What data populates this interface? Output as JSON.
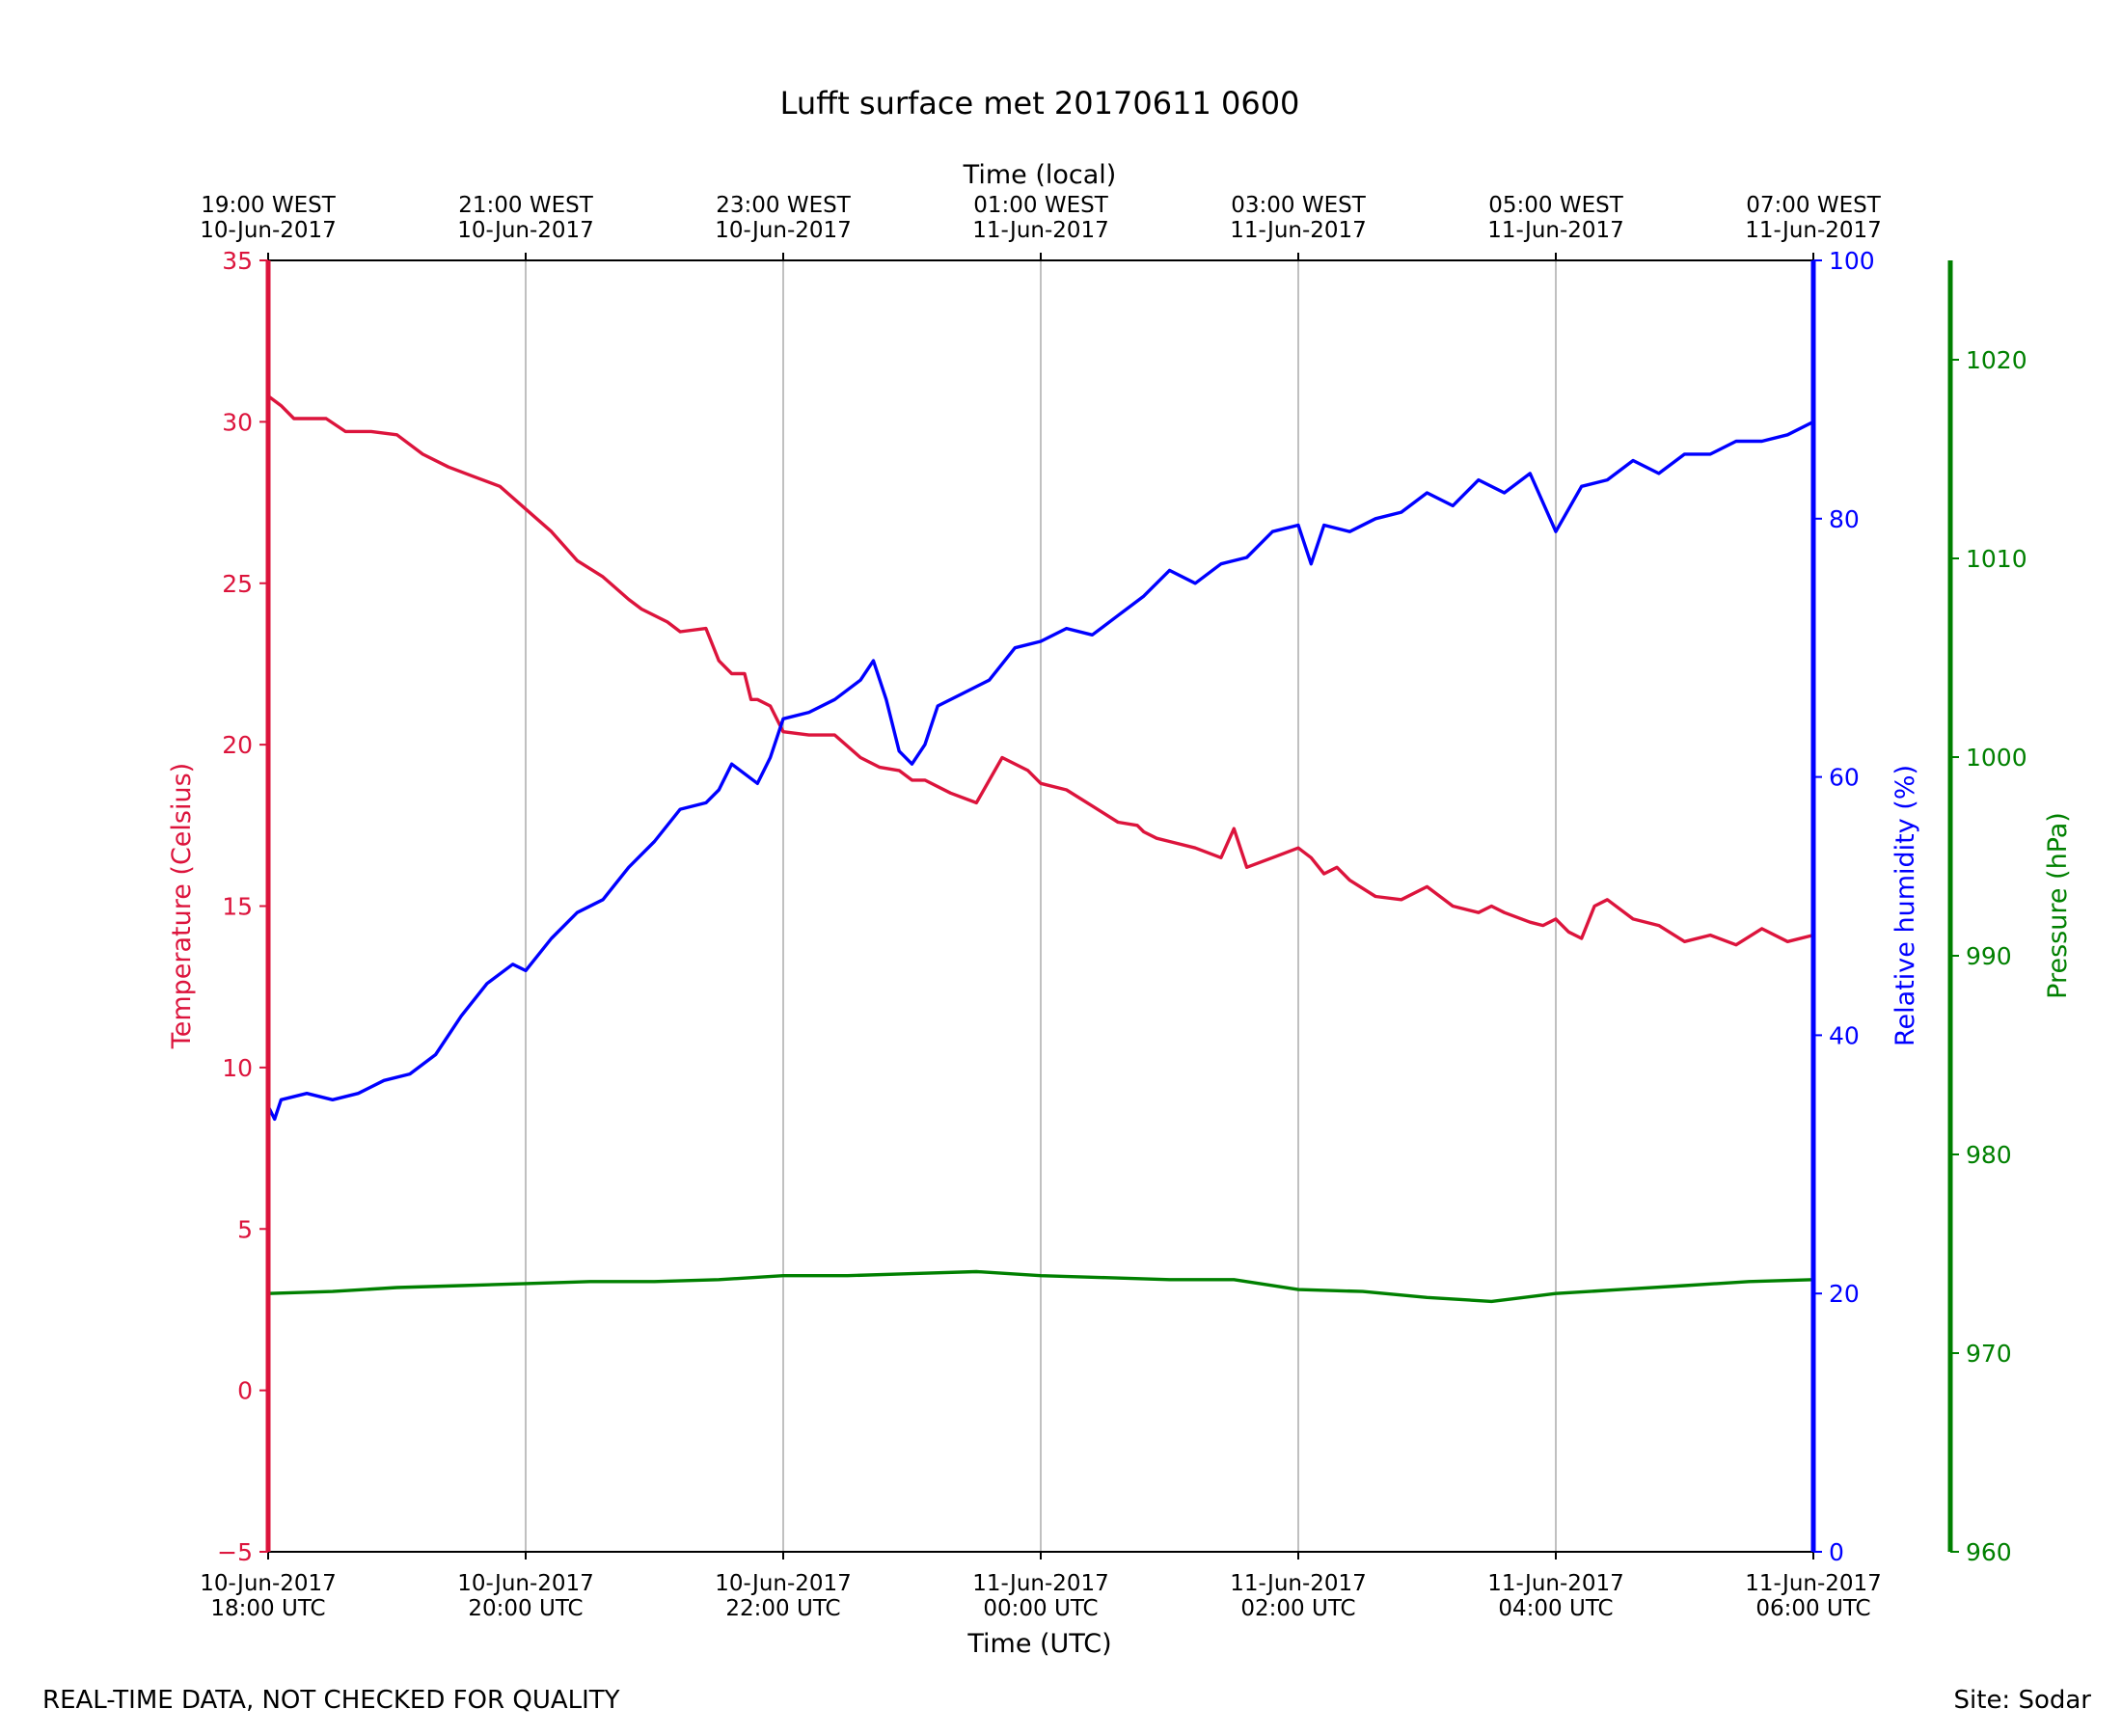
{
  "chart_data": {
    "type": "line",
    "title": "Lufft surface met 20170611 0600",
    "footer_left": "REAL-TIME DATA, NOT CHECKED FOR QUALITY",
    "footer_right": "Site: Sodar",
    "x_axis": {
      "label": "Time (UTC)",
      "range_hours": [
        0,
        12
      ],
      "ticks": [
        {
          "hours": 0,
          "line1": "10-Jun-2017",
          "line2": "18:00 UTC"
        },
        {
          "hours": 2,
          "line1": "10-Jun-2017",
          "line2": "20:00 UTC"
        },
        {
          "hours": 4,
          "line1": "10-Jun-2017",
          "line2": "22:00 UTC"
        },
        {
          "hours": 6,
          "line1": "11-Jun-2017",
          "line2": "00:00 UTC"
        },
        {
          "hours": 8,
          "line1": "11-Jun-2017",
          "line2": "02:00 UTC"
        },
        {
          "hours": 10,
          "line1": "11-Jun-2017",
          "line2": "04:00 UTC"
        },
        {
          "hours": 12,
          "line1": "11-Jun-2017",
          "line2": "06:00 UTC"
        }
      ]
    },
    "x2_axis": {
      "label": "Time (local)",
      "ticks": [
        {
          "hours": 0,
          "line1": "19:00 WEST",
          "line2": "10-Jun-2017"
        },
        {
          "hours": 2,
          "line1": "21:00 WEST",
          "line2": "10-Jun-2017"
        },
        {
          "hours": 4,
          "line1": "23:00 WEST",
          "line2": "10-Jun-2017"
        },
        {
          "hours": 6,
          "line1": "01:00 WEST",
          "line2": "11-Jun-2017"
        },
        {
          "hours": 8,
          "line1": "03:00 WEST",
          "line2": "11-Jun-2017"
        },
        {
          "hours": 10,
          "line1": "05:00 WEST",
          "line2": "11-Jun-2017"
        },
        {
          "hours": 12,
          "line1": "07:00 WEST",
          "line2": "11-Jun-2017"
        }
      ]
    },
    "y_axes": [
      {
        "id": "temp",
        "label": "Temperature (Celsius)",
        "ylim": [
          -5,
          35
        ],
        "ticks": [
          -5,
          0,
          5,
          10,
          15,
          20,
          25,
          30,
          35
        ],
        "color": "#dc143c"
      },
      {
        "id": "rh",
        "label": "Relative humidity (%)",
        "ylim": [
          0,
          100
        ],
        "ticks": [
          0,
          20,
          40,
          60,
          80,
          100
        ],
        "color": "#0000ff"
      },
      {
        "id": "pres",
        "label": "Pressure (hPa)",
        "ylim": [
          960,
          1025
        ],
        "ticks": [
          960,
          970,
          980,
          990,
          1000,
          1010,
          1020
        ],
        "color": "#008000"
      }
    ],
    "grid": "vertical",
    "series": [
      {
        "name": "Temperature (Celsius)",
        "axis": "temp",
        "color": "#dc143c",
        "x": [
          0,
          0.1,
          0.2,
          0.3,
          0.45,
          0.6,
          0.8,
          1.0,
          1.2,
          1.4,
          1.6,
          1.8,
          2.0,
          2.2,
          2.4,
          2.6,
          2.8,
          2.9,
          3.1,
          3.2,
          3.4,
          3.5,
          3.6,
          3.7,
          3.75,
          3.8,
          3.9,
          4.0,
          4.2,
          4.4,
          4.6,
          4.75,
          4.9,
          5.0,
          5.1,
          5.3,
          5.5,
          5.7,
          5.9,
          6.0,
          6.2,
          6.4,
          6.6,
          6.75,
          6.8,
          6.9,
          7.0,
          7.2,
          7.4,
          7.5,
          7.6,
          7.8,
          8.0,
          8.1,
          8.2,
          8.3,
          8.4,
          8.6,
          8.8,
          9.0,
          9.2,
          9.4,
          9.5,
          9.6,
          9.8,
          9.9,
          10.0,
          10.1,
          10.2,
          10.3,
          10.4,
          10.6,
          10.8,
          11.0,
          11.2,
          11.4,
          11.6,
          11.8,
          12.0
        ],
        "values": [
          30.8,
          30.5,
          30.1,
          30.1,
          30.1,
          29.7,
          29.7,
          29.6,
          29.0,
          28.6,
          28.3,
          28.0,
          27.3,
          26.6,
          25.7,
          25.2,
          24.5,
          24.2,
          23.8,
          23.5,
          23.6,
          22.6,
          22.2,
          22.2,
          21.4,
          21.4,
          21.2,
          20.4,
          20.3,
          20.3,
          19.6,
          19.3,
          19.2,
          18.9,
          18.9,
          18.5,
          18.2,
          19.6,
          19.2,
          18.8,
          18.6,
          18.1,
          17.6,
          17.5,
          17.3,
          17.1,
          17.0,
          16.8,
          16.5,
          17.4,
          16.2,
          16.5,
          16.8,
          16.5,
          16.0,
          16.2,
          15.8,
          15.3,
          15.2,
          15.6,
          15.0,
          14.8,
          15.0,
          14.8,
          14.5,
          14.4,
          14.6,
          14.2,
          14.0,
          15.0,
          15.2,
          14.6,
          14.4,
          13.9,
          14.1,
          13.8,
          14.3,
          13.9,
          14.1
        ]
      },
      {
        "name": "Relative humidity (%)",
        "axis": "rh",
        "color": "#0000ff",
        "x": [
          0,
          0.05,
          0.1,
          0.3,
          0.5,
          0.7,
          0.9,
          1.1,
          1.3,
          1.5,
          1.7,
          1.9,
          2.0,
          2.2,
          2.4,
          2.6,
          2.8,
          3.0,
          3.2,
          3.4,
          3.5,
          3.6,
          3.8,
          3.9,
          4.0,
          4.2,
          4.4,
          4.6,
          4.7,
          4.8,
          4.9,
          5.0,
          5.1,
          5.2,
          5.4,
          5.6,
          5.8,
          6.0,
          6.2,
          6.4,
          6.6,
          6.8,
          7.0,
          7.2,
          7.4,
          7.6,
          7.8,
          8.0,
          8.1,
          8.2,
          8.4,
          8.6,
          8.8,
          9.0,
          9.2,
          9.4,
          9.6,
          9.8,
          10.0,
          10.2,
          10.4,
          10.6,
          10.8,
          11.0,
          11.2,
          11.4,
          11.6,
          11.8,
          12.0
        ],
        "values": [
          34.5,
          33.5,
          35.0,
          35.5,
          35.0,
          35.5,
          36.5,
          37.0,
          38.5,
          41.5,
          44.0,
          45.5,
          45.0,
          47.5,
          49.5,
          50.5,
          53.0,
          55.0,
          57.5,
          58.0,
          59.0,
          61.0,
          59.5,
          61.5,
          64.5,
          65.0,
          66.0,
          67.5,
          69.0,
          66.0,
          62.0,
          61.0,
          62.5,
          65.5,
          66.5,
          67.5,
          70.0,
          70.5,
          71.5,
          71.0,
          72.5,
          74.0,
          76.0,
          75.0,
          76.5,
          77.0,
          79.0,
          79.5,
          76.5,
          79.5,
          79.0,
          80.0,
          80.5,
          82.0,
          81.0,
          83.0,
          82.0,
          83.5,
          79.0,
          82.5,
          83.0,
          84.5,
          83.5,
          85.0,
          85.0,
          86.0,
          86.0,
          86.5,
          87.5
        ]
      },
      {
        "name": "Pressure (hPa)",
        "axis": "pres",
        "color": "#008000",
        "x": [
          0,
          0.5,
          1.0,
          1.5,
          2.0,
          2.5,
          3.0,
          3.5,
          4.0,
          4.5,
          5.0,
          5.5,
          6.0,
          6.5,
          7.0,
          7.5,
          8.0,
          8.5,
          9.0,
          9.5,
          10.0,
          10.5,
          11.0,
          11.5,
          12.0
        ],
        "values": [
          973.0,
          973.1,
          973.3,
          973.4,
          973.5,
          973.6,
          973.6,
          973.7,
          973.9,
          973.9,
          974.0,
          974.1,
          973.9,
          973.8,
          973.7,
          973.7,
          973.2,
          973.1,
          972.8,
          972.6,
          973.0,
          973.2,
          973.4,
          973.6,
          973.7
        ]
      }
    ]
  }
}
